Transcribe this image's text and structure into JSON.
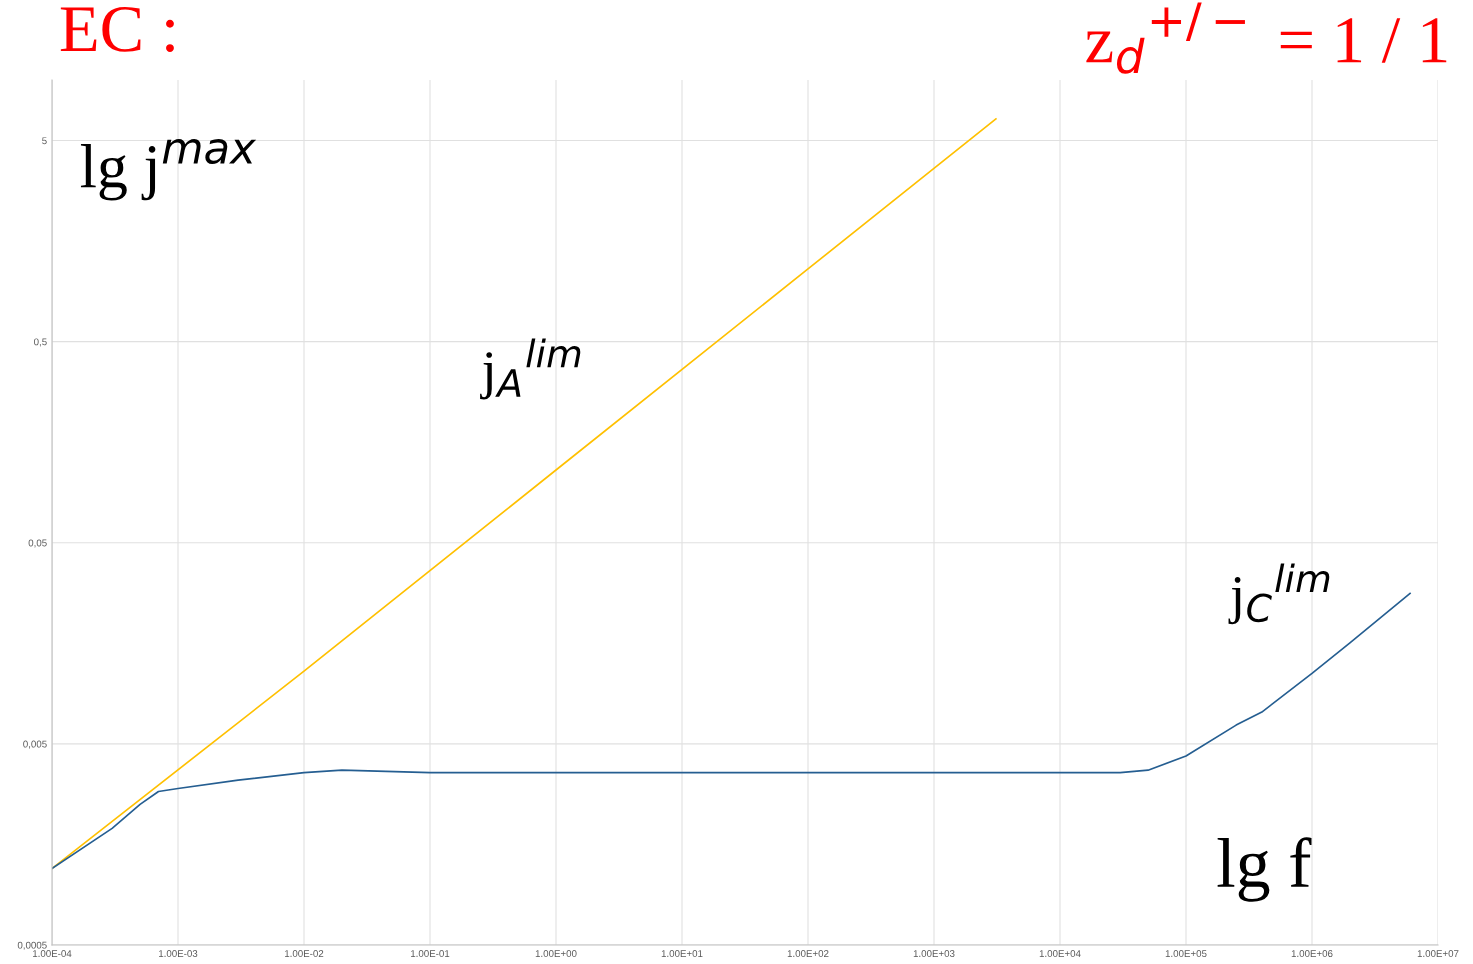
{
  "chart_data": {
    "type": "line",
    "log": "xy",
    "grid": true,
    "legend": false,
    "marker": "none",
    "line_style": "solid",
    "xlim": [
      0.0001,
      10000000
    ],
    "ylim": [
      0.0005,
      10
    ],
    "xticks": [
      {
        "value": 0.0001,
        "label": "1.00E-04"
      },
      {
        "value": 0.001,
        "label": "1.00E-03"
      },
      {
        "value": 0.01,
        "label": "1.00E-02"
      },
      {
        "value": 0.1,
        "label": "1.00E-01"
      },
      {
        "value": 1,
        "label": "1.00E+00"
      },
      {
        "value": 10,
        "label": "1.00E+01"
      },
      {
        "value": 100,
        "label": "1.00E+02"
      },
      {
        "value": 1000,
        "label": "1.00E+03"
      },
      {
        "value": 10000,
        "label": "1.00E+04"
      },
      {
        "value": 100000,
        "label": "1.00E+05"
      },
      {
        "value": 1000000,
        "label": "1.00E+06"
      },
      {
        "value": 10000000,
        "label": "1.00E+07"
      }
    ],
    "yticks": [
      {
        "value": 0.0005,
        "label": "0,0005"
      },
      {
        "value": 0.005,
        "label": "0,005"
      },
      {
        "value": 0.05,
        "label": "0,05"
      },
      {
        "value": 0.5,
        "label": "0,5"
      },
      {
        "value": 5,
        "label": "5"
      }
    ],
    "series": [
      {
        "color": "#ffc000",
        "x": [
          0.0001,
          0.01,
          1,
          100,
          3100
        ],
        "values": [
          0.0012,
          0.0115,
          0.115,
          1.15,
          6.4
        ]
      },
      {
        "color": "#255e91",
        "x": [
          0.0001,
          0.0003,
          0.0005,
          0.0007,
          0.001,
          0.003,
          0.01,
          0.02,
          0.1,
          30000,
          50000,
          100000,
          250000,
          400000,
          1000000,
          2000000,
          6000000
        ],
        "values": [
          0.0012,
          0.0019,
          0.0025,
          0.0029,
          0.003,
          0.0033,
          0.0036,
          0.0037,
          0.0036,
          0.0036,
          0.0037,
          0.00435,
          0.0062,
          0.0072,
          0.0112,
          0.0159,
          0.028
        ]
      }
    ],
    "annotations": [
      "EC :",
      "z$_{d}$$^{+/−}$ = 1 / 1",
      "lg j$^{max}$",
      "j$_{A}$$^{lim}$",
      "j$_{C}$$^{lim}$",
      "lg f"
    ]
  }
}
